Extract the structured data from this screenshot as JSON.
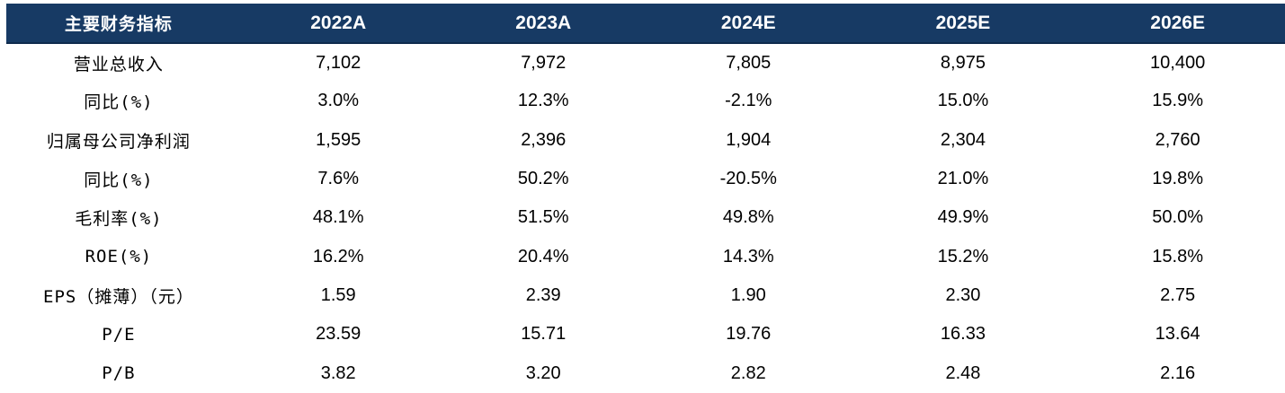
{
  "table": {
    "header": {
      "label": "主要财务指标",
      "years": [
        "2022A",
        "2023A",
        "2024E",
        "2025E",
        "2026E"
      ]
    },
    "rows": [
      {
        "label": "营业总收入",
        "values": [
          "7,102",
          "7,972",
          "7,805",
          "8,975",
          "10,400"
        ]
      },
      {
        "label": "同比(%)",
        "values": [
          "3.0%",
          "12.3%",
          "-2.1%",
          "15.0%",
          "15.9%"
        ]
      },
      {
        "label": "归属母公司净利润",
        "values": [
          "1,595",
          "2,396",
          "1,904",
          "2,304",
          "2,760"
        ]
      },
      {
        "label": "同比(%)",
        "values": [
          "7.6%",
          "50.2%",
          "-20.5%",
          "21.0%",
          "19.8%"
        ]
      },
      {
        "label": "毛利率(%)",
        "values": [
          "48.1%",
          "51.5%",
          "49.8%",
          "49.9%",
          "50.0%"
        ]
      },
      {
        "label": "ROE(%)",
        "values": [
          "16.2%",
          "20.4%",
          "14.3%",
          "15.2%",
          "15.8%"
        ]
      },
      {
        "label": "EPS（摊薄）（元）",
        "values": [
          "1.59",
          "2.39",
          "1.90",
          "2.30",
          "2.75"
        ]
      },
      {
        "label": "P/E",
        "values": [
          "23.59",
          "15.71",
          "19.76",
          "16.33",
          "13.64"
        ]
      },
      {
        "label": "P/B",
        "values": [
          "3.82",
          "3.20",
          "2.82",
          "2.48",
          "2.16"
        ]
      }
    ]
  },
  "colors": {
    "header_background": "#173a64",
    "header_text": "#ffffff",
    "body_text": "#000000"
  }
}
